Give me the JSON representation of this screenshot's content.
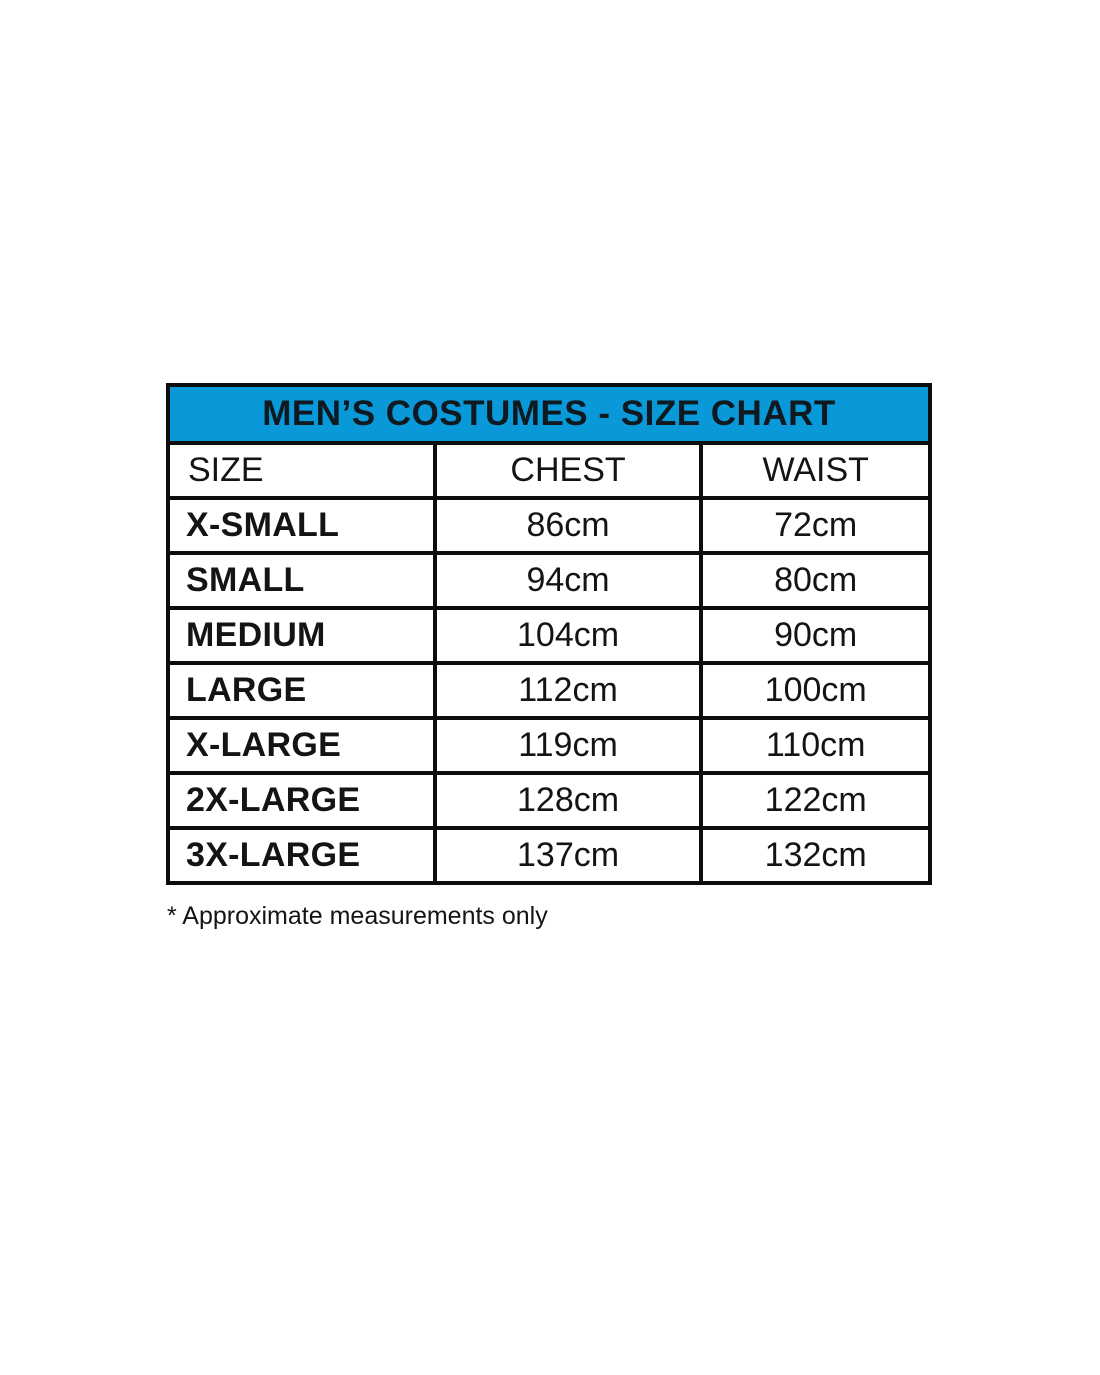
{
  "chart_data": {
    "type": "table",
    "title": "MEN’S COSTUMES - SIZE CHART",
    "columns": [
      "SIZE",
      "CHEST",
      "WAIST"
    ],
    "rows": [
      {
        "size": "X-SMALL",
        "chest": "86cm",
        "waist": "72cm"
      },
      {
        "size": "SMALL",
        "chest": "94cm",
        "waist": "80cm"
      },
      {
        "size": "MEDIUM",
        "chest": "104cm",
        "waist": "90cm"
      },
      {
        "size": "LARGE",
        "chest": "112cm",
        "waist": "100cm"
      },
      {
        "size": "X-LARGE",
        "chest": "119cm",
        "waist": "110cm"
      },
      {
        "size": "2X-LARGE",
        "chest": "128cm",
        "waist": "122cm"
      },
      {
        "size": "3X-LARGE",
        "chest": "137cm",
        "waist": "132cm"
      }
    ],
    "footnote": "* Approximate measurements only",
    "layout": {
      "legend": "none",
      "grid": "full black cell borders"
    }
  },
  "colors": {
    "title_bar_bg": "#0999d8",
    "border": "#0d0d0d",
    "text": "#141414",
    "page_bg": "#ffffff"
  }
}
